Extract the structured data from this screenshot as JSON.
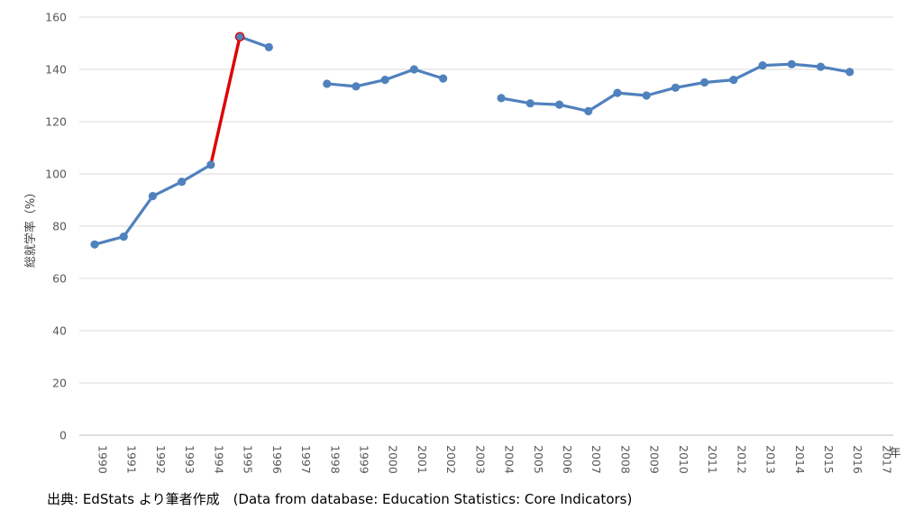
{
  "chart_data": {
    "type": "line",
    "ylabel": "総就学率（%）",
    "xlabel": "年",
    "ylim": [
      0,
      160
    ],
    "yticks": [
      0,
      20,
      40,
      60,
      80,
      100,
      120,
      140,
      160
    ],
    "grid": true,
    "legend": "none",
    "categories": [
      "1990",
      "1991",
      "1992",
      "1993",
      "1994",
      "1995",
      "1996",
      "1997",
      "1998",
      "1999",
      "2000",
      "2001",
      "2002",
      "2003",
      "2004",
      "2005",
      "2006",
      "2007",
      "2008",
      "2009",
      "2010",
      "2011",
      "2012",
      "2013",
      "2014",
      "2015",
      "2016",
      "2017"
    ],
    "series": [
      {
        "color": "#4F81BD",
        "values": [
          73,
          76,
          91.5,
          97,
          103.5,
          152.5,
          148.5,
          null,
          134.5,
          133.5,
          136,
          140,
          136.5,
          null,
          129,
          127,
          126.5,
          124,
          131,
          130,
          133,
          135,
          136,
          141.5,
          142,
          141,
          139,
          null
        ]
      }
    ],
    "highlight_segment": {
      "from": "1994",
      "to": "1995",
      "color": "#E00000"
    }
  },
  "source_note": "出典: EdStats より筆者作成　(Data from database: Education Statistics: Core Indicators)"
}
